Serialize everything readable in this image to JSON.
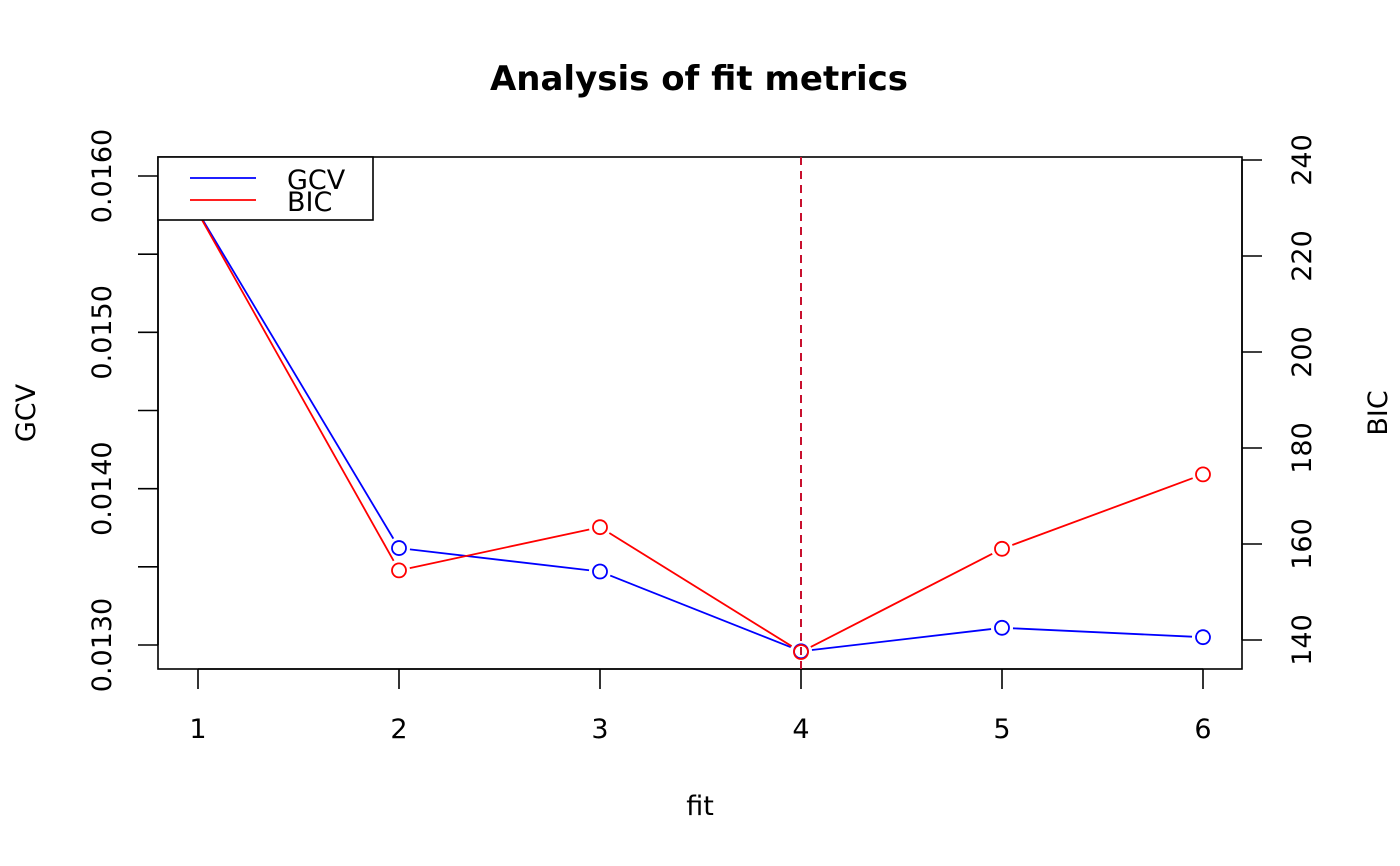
{
  "chart_data": {
    "type": "line",
    "title": "Analysis of fit metrics",
    "xlabel": "fit",
    "ylabel_left": "GCV",
    "ylabel_right": "BIC",
    "x": [
      1,
      2,
      3,
      4,
      5,
      6
    ],
    "x_ticks": [
      "1",
      "2",
      "3",
      "4",
      "5",
      "6"
    ],
    "y_left_ticks": [
      "0.0130",
      "0.0140",
      "0.0150",
      "0.0160"
    ],
    "y_left_tick_values": [
      0.013,
      0.0135,
      0.014,
      0.0145,
      0.015,
      0.0155,
      0.016
    ],
    "y_left_range": [
      0.01286,
      0.01611
    ],
    "y_right_ticks": [
      "140",
      "160",
      "180",
      "200",
      "220",
      "240"
    ],
    "y_right_tick_values": [
      140,
      160,
      180,
      200,
      220,
      240
    ],
    "y_right_range": [
      134,
      240.5
    ],
    "series": [
      {
        "name": "GCV",
        "axis": "left",
        "color": "#0000ff",
        "values": [
          0.01577,
          0.01362,
          0.01347,
          0.01296,
          0.01311,
          0.01305
        ]
      },
      {
        "name": "BIC",
        "axis": "right",
        "color": "#ff0000",
        "values": [
          229,
          154.5,
          163.5,
          137.5,
          159,
          174.5
        ]
      }
    ],
    "vline": {
      "x": 4,
      "color": "#c8102e",
      "style": "dashed"
    },
    "legend": {
      "position": "top-left",
      "entries": [
        "GCV",
        "BIC"
      ]
    },
    "grid": false
  }
}
